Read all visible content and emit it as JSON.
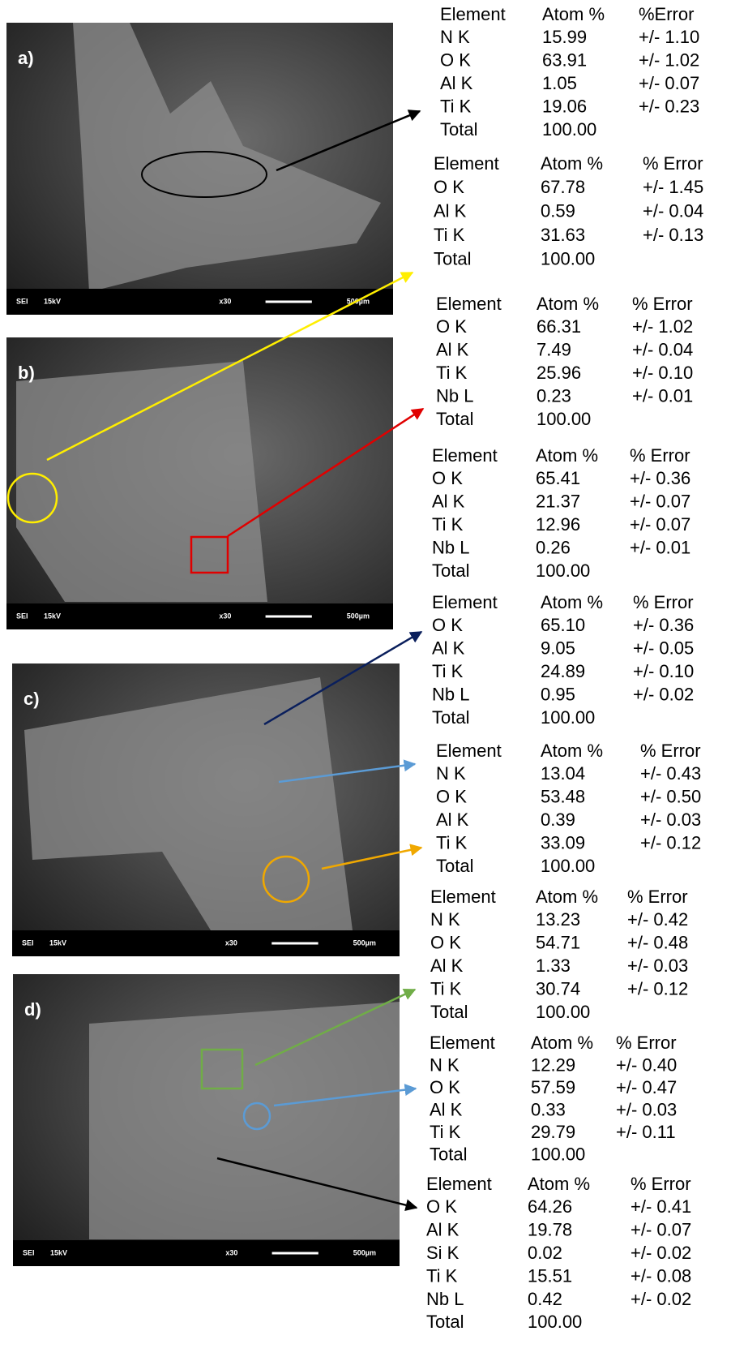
{
  "panels": [
    {
      "label": "a)",
      "bar": [
        "SEI",
        "15kV",
        "x30",
        "500µm"
      ]
    },
    {
      "label": "b)",
      "bar": [
        "SEI",
        "15kV",
        "x30",
        "500µm"
      ]
    },
    {
      "label": "c)",
      "bar": [
        "SEI",
        "15kV",
        "x30",
        "500µm"
      ]
    },
    {
      "label": "d)",
      "bar": [
        "SEI",
        "15kV",
        "x30",
        "500µm"
      ]
    }
  ],
  "tables": [
    {
      "header": [
        "Element",
        "Atom %",
        "%Error"
      ],
      "rows": [
        [
          "N K",
          "15.99",
          "+/- 1.10"
        ],
        [
          "O K",
          "63.91",
          "+/- 1.02"
        ],
        [
          "Al K",
          "1.05",
          "+/- 0.07"
        ],
        [
          "Ti K",
          "19.06",
          "+/- 0.23"
        ],
        [
          "Total",
          "100.00",
          null
        ]
      ]
    },
    {
      "header": [
        "Element",
        "Atom %",
        "% Error"
      ],
      "rows": [
        [
          "O K",
          "67.78",
          "+/- 1.45"
        ],
        [
          "Al K",
          "0.59",
          "+/- 0.04"
        ],
        [
          "Ti K",
          "31.63",
          "+/- 0.13"
        ],
        [
          "Total",
          "100.00",
          null
        ]
      ]
    },
    {
      "header": [
        "Element",
        "Atom %",
        "% Error"
      ],
      "rows": [
        [
          "O K",
          "66.31",
          "+/- 1.02"
        ],
        [
          "Al K",
          "7.49",
          "+/- 0.04"
        ],
        [
          "Ti K",
          "25.96",
          "+/- 0.10"
        ],
        [
          "Nb L",
          "0.23",
          "+/- 0.01"
        ],
        [
          "Total",
          "100.00",
          null
        ]
      ]
    },
    {
      "header": [
        "Element",
        "Atom %",
        "% Error"
      ],
      "rows": [
        [
          "O K",
          "65.41",
          "+/- 0.36"
        ],
        [
          "Al K",
          "21.37",
          "+/- 0.07"
        ],
        [
          "Ti K",
          "12.96",
          "+/- 0.07"
        ],
        [
          "Nb L",
          "0.26",
          "+/- 0.01"
        ],
        [
          "Total",
          "100.00",
          null
        ]
      ]
    },
    {
      "header": [
        "Element",
        "Atom %",
        "% Error"
      ],
      "rows": [
        [
          "O K",
          "65.10",
          "+/- 0.36"
        ],
        [
          "Al K",
          "9.05",
          "+/- 0.05"
        ],
        [
          "Ti K",
          "24.89",
          "+/- 0.10"
        ],
        [
          "Nb L",
          "0.95",
          "+/- 0.02"
        ],
        [
          "Total",
          "100.00",
          null
        ]
      ]
    },
    {
      "header": [
        "Element",
        "Atom %",
        "% Error"
      ],
      "rows": [
        [
          "N K",
          "13.04",
          "+/- 0.43"
        ],
        [
          "O K",
          "53.48",
          "+/- 0.50"
        ],
        [
          "Al K",
          "0.39",
          "+/- 0.03"
        ],
        [
          "Ti K",
          "33.09",
          "+/- 0.12"
        ],
        [
          "Total",
          "100.00",
          null
        ]
      ]
    },
    {
      "header": [
        "Element",
        "Atom %",
        "% Error"
      ],
      "rows": [
        [
          "N K",
          "13.23",
          "+/- 0.42"
        ],
        [
          "O K",
          "54.71",
          "+/- 0.48"
        ],
        [
          "Al K",
          "1.33",
          "+/- 0.03"
        ],
        [
          "Ti K",
          "30.74",
          "+/- 0.12"
        ],
        [
          "Total",
          "100.00",
          null
        ]
      ]
    },
    {
      "header": [
        "Element",
        "Atom %",
        "% Error"
      ],
      "rows": [
        [
          "N K",
          "12.29",
          "+/- 0.40"
        ],
        [
          "O K",
          "57.59",
          "+/- 0.47"
        ],
        [
          "Al K",
          "0.33",
          "+/- 0.03"
        ],
        [
          "Ti K",
          "29.79",
          "+/- 0.11"
        ],
        [
          "Total",
          "100.00",
          null
        ]
      ]
    },
    {
      "header": [
        "Element",
        "Atom %",
        "% Error"
      ],
      "rows": [
        [
          "O K",
          "64.26",
          "+/- 0.41"
        ],
        [
          "Al K",
          "19.78",
          "+/- 0.07"
        ],
        [
          "Si K",
          "0.02",
          "+/- 0.02"
        ],
        [
          "Ti K",
          "15.51",
          "+/- 0.08"
        ],
        [
          "Nb L",
          "0.42",
          "+/- 0.02"
        ],
        [
          "Total",
          "100.00",
          null
        ]
      ]
    }
  ]
}
